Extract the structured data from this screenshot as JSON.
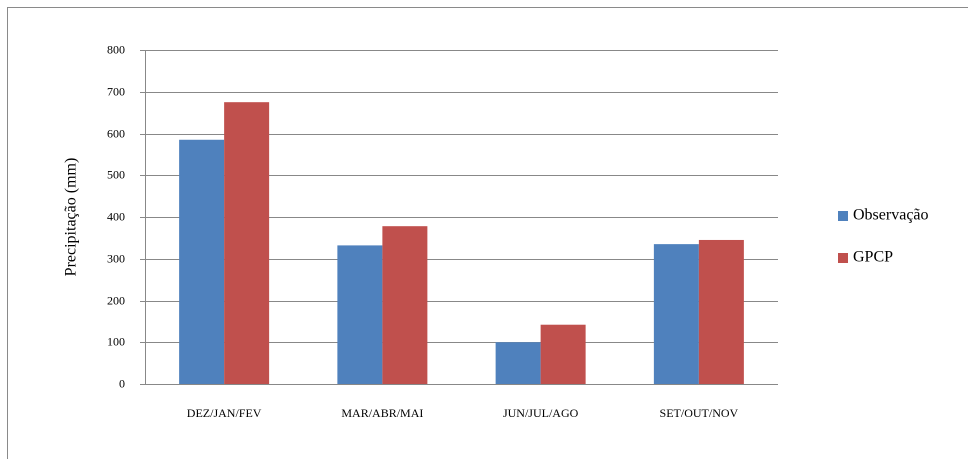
{
  "chart_data": {
    "type": "bar",
    "y_label": "Precipitação (mm)",
    "categories": [
      "DEZ/JAN/FEV",
      "MAR/ABR/MAI",
      "JUN/JUL/AGO",
      "SET/OUT/NOV"
    ],
    "series": [
      {
        "name": "Observação",
        "color": "#4f81bd",
        "values": [
          585,
          332,
          100,
          335
        ]
      },
      {
        "name": "GPCP",
        "color": "#c0504d",
        "values": [
          675,
          378,
          142,
          345
        ]
      }
    ],
    "ylim": [
      0,
      800
    ],
    "yticks": [
      0,
      100,
      200,
      300,
      400,
      500,
      600,
      700,
      800
    ],
    "grid": true,
    "legend": "right"
  }
}
